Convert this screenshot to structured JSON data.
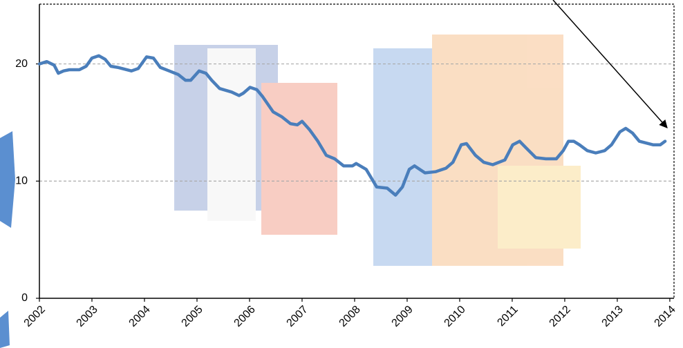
{
  "chart_data": {
    "type": "line",
    "x": [
      2002.0,
      2002.14,
      2002.28,
      2002.36,
      2002.46,
      2002.57,
      2002.76,
      2002.89,
      2003.0,
      2003.13,
      2003.25,
      2003.36,
      2003.49,
      2003.75,
      2003.88,
      2004.04,
      2004.17,
      2004.3,
      2004.47,
      2004.64,
      2004.78,
      2004.88,
      2005.04,
      2005.17,
      2005.28,
      2005.43,
      2005.66,
      2005.8,
      2005.88,
      2006.01,
      2006.14,
      2006.25,
      2006.45,
      2006.61,
      2006.78,
      2006.91,
      2007.0,
      2007.14,
      2007.3,
      2007.46,
      2007.62,
      2007.79,
      2007.96,
      2008.03,
      2008.22,
      2008.42,
      2008.62,
      2008.78,
      2008.91,
      2009.04,
      2009.14,
      2009.34,
      2009.54,
      2009.74,
      2009.87,
      2010.03,
      2010.13,
      2010.3,
      2010.46,
      2010.63,
      2010.86,
      2011.01,
      2011.14,
      2011.25,
      2011.45,
      2011.64,
      2011.84,
      2011.97,
      2012.07,
      2012.17,
      2012.28,
      2012.43,
      2012.59,
      2012.76,
      2012.89,
      2013.05,
      2013.16,
      2013.29,
      2013.42,
      2013.68,
      2013.82,
      2013.91
    ],
    "series": [
      {
        "color": "#4a7ebb",
        "values": [
          20.0,
          20.2,
          19.9,
          19.2,
          19.4,
          19.5,
          19.5,
          19.8,
          20.5,
          20.7,
          20.4,
          19.8,
          19.7,
          19.4,
          19.6,
          20.6,
          20.5,
          19.7,
          19.4,
          19.1,
          18.6,
          18.6,
          19.4,
          19.2,
          18.6,
          17.9,
          17.6,
          17.3,
          17.5,
          18.0,
          17.8,
          17.2,
          15.9,
          15.5,
          14.9,
          14.8,
          15.1,
          14.4,
          13.4,
          12.2,
          11.9,
          11.3,
          11.3,
          11.5,
          11.0,
          9.5,
          9.4,
          8.8,
          9.5,
          11.0,
          11.3,
          10.7,
          10.8,
          11.1,
          11.6,
          13.1,
          13.2,
          12.2,
          11.6,
          11.4,
          11.8,
          13.1,
          13.4,
          12.9,
          12.0,
          11.9,
          11.9,
          12.6,
          13.4,
          13.4,
          13.1,
          12.6,
          12.4,
          12.6,
          13.1,
          14.2,
          14.5,
          14.1,
          13.4,
          13.1,
          13.1,
          13.4
        ]
      }
    ],
    "xlim": [
      2002,
      2014.08
    ],
    "xticks": [
      2002,
      2003,
      2004,
      2005,
      2006,
      2007,
      2008,
      2009,
      2010,
      2011,
      2012,
      2013,
      2014
    ],
    "ylim": [
      0,
      25.1
    ],
    "yticks": [
      0,
      10,
      20
    ],
    "grid": true
  }
}
